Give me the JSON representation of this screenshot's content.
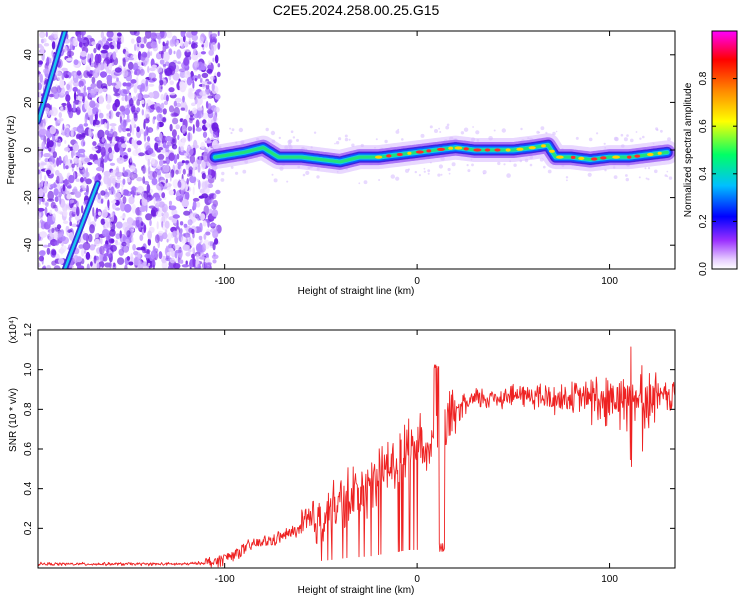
{
  "figure_title": "C2E5.2024.258.00.25.G15",
  "colors": {
    "snr_line": "#ee2222",
    "axis": "#000000",
    "colorbar": [
      "#ffffff",
      "#e6ccff",
      "#8a2be2",
      "#0000ff",
      "#00bfff",
      "#00ff66",
      "#ffff00",
      "#ff8800",
      "#ff0000",
      "#ff00ff"
    ]
  },
  "chart_data": [
    {
      "type": "heatmap",
      "xlabel": "Height of straight line (km)",
      "ylabel": "Frequency (Hz)",
      "xlim": [
        -197,
        134
      ],
      "ylim": [
        -50,
        50
      ],
      "xticks": [
        -100,
        0,
        100
      ],
      "yticks": [
        -40,
        -20,
        0,
        20,
        40
      ],
      "colorbar": {
        "label": "Normalized spectral amplitude",
        "range": [
          0,
          1
        ],
        "ticks": [
          0.0,
          0.2,
          0.4,
          0.6,
          0.8
        ]
      },
      "ridge_track": {
        "x": [
          -105,
          -90,
          -80,
          -72,
          -60,
          -50,
          -40,
          -30,
          -20,
          -10,
          0,
          10,
          20,
          30,
          40,
          50,
          60,
          68,
          72,
          80,
          90,
          100,
          110,
          120,
          130
        ],
        "y": [
          -3,
          -1,
          1,
          -3,
          -3,
          -4,
          -5,
          -3,
          -3,
          -2,
          -1,
          0,
          1,
          0,
          0,
          0,
          1,
          2,
          -3,
          -3,
          -4,
          -3,
          -3,
          -2,
          -1
        ]
      },
      "noise_region_x": [
        -197,
        -103
      ],
      "diagonal_traces": [
        {
          "x": [
            -197,
            -183
          ],
          "y": [
            12,
            50
          ]
        },
        {
          "x": [
            -183,
            -166
          ],
          "y": [
            -50,
            -14
          ]
        }
      ]
    },
    {
      "type": "line",
      "xlabel": "Height of straight line (km)",
      "ylabel": "SNR (10 * v/v)",
      "y_multiplier": "(x10⁴)",
      "xlim": [
        -197,
        134
      ],
      "ylim": [
        0,
        1.2
      ],
      "xticks": [
        -100,
        0,
        100
      ],
      "yticks": [
        0.2,
        0.4,
        0.6,
        0.8,
        1.0,
        1.2
      ],
      "series": [
        {
          "x": [
            -197,
            -180,
            -160,
            -140,
            -120,
            -105,
            -95,
            -85,
            -75,
            -65,
            -55,
            -45,
            -40,
            -35,
            -30,
            -25,
            -20,
            -15,
            -10,
            -5,
            0,
            5,
            10,
            15,
            20,
            25,
            30,
            40,
            50,
            60,
            70,
            80,
            90,
            100,
            110,
            120,
            134
          ],
          "y": [
            0.02,
            0.02,
            0.02,
            0.02,
            0.02,
            0.03,
            0.07,
            0.12,
            0.14,
            0.18,
            0.22,
            0.28,
            0.32,
            0.36,
            0.38,
            0.4,
            0.45,
            0.52,
            0.55,
            0.62,
            0.62,
            0.65,
            0.6,
            0.7,
            0.78,
            0.82,
            0.85,
            0.86,
            0.87,
            0.87,
            0.85,
            0.86,
            0.86,
            0.85,
            0.86,
            0.85,
            0.87
          ]
        }
      ]
    }
  ]
}
